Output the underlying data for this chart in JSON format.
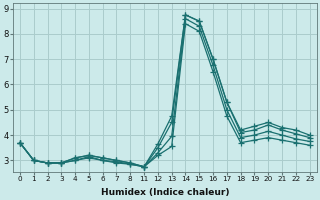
{
  "xlabel": "Humidex (Indice chaleur)",
  "background_color": "#cceaea",
  "grid_color": "#aacccc",
  "line_color": "#1a7070",
  "ylim": [
    2.55,
    9.2
  ],
  "yticks": [
    3,
    4,
    5,
    6,
    7,
    8,
    9
  ],
  "tick_positions": [
    0,
    1,
    2,
    3,
    4,
    5,
    6,
    7,
    8,
    9,
    10,
    11,
    12,
    13,
    14,
    15,
    16,
    17,
    18,
    19,
    20,
    21,
    22
  ],
  "tick_labels": [
    "0",
    "1",
    "2",
    "3",
    "4",
    "5",
    "6",
    "7",
    "8",
    "11",
    "12",
    "13",
    "14",
    "15",
    "16",
    "17",
    "18",
    "19",
    "20",
    "21",
    "22",
    "23",
    ""
  ],
  "lines": [
    {
      "xi": [
        0,
        1,
        2,
        3,
        4,
        5,
        6,
        7,
        8,
        9,
        10,
        11,
        12,
        13,
        14,
        15,
        16,
        17,
        18,
        19,
        20,
        21
      ],
      "y": [
        3.7,
        3.0,
        2.9,
        2.9,
        3.1,
        3.2,
        3.1,
        3.0,
        2.9,
        2.75,
        3.65,
        4.75,
        8.75,
        8.5,
        7.0,
        5.3,
        4.2,
        4.35,
        4.5,
        4.3,
        4.2,
        4.0
      ]
    },
    {
      "xi": [
        0,
        1,
        2,
        3,
        4,
        5,
        6,
        7,
        8,
        9,
        10,
        11,
        12,
        13,
        14,
        15,
        16,
        17,
        18,
        19,
        20,
        21
      ],
      "y": [
        3.7,
        3.0,
        2.9,
        2.9,
        3.1,
        3.2,
        3.1,
        3.0,
        2.9,
        2.75,
        3.5,
        4.5,
        8.75,
        8.5,
        7.0,
        5.3,
        4.1,
        4.2,
        4.4,
        4.2,
        4.05,
        3.9
      ]
    },
    {
      "xi": [
        0,
        1,
        2,
        3,
        4,
        5,
        6,
        7,
        8,
        9,
        10,
        11,
        12,
        13,
        14,
        15,
        16,
        17,
        18,
        19,
        20,
        21
      ],
      "y": [
        3.7,
        3.0,
        2.9,
        2.9,
        3.0,
        3.15,
        3.0,
        2.95,
        2.85,
        2.75,
        3.3,
        3.95,
        8.6,
        8.3,
        6.75,
        5.0,
        3.9,
        4.0,
        4.15,
        4.0,
        3.85,
        3.75
      ]
    },
    {
      "xi": [
        0,
        1,
        2,
        3,
        4,
        5,
        6,
        7,
        8,
        9,
        10,
        11,
        12,
        13,
        14,
        15,
        16,
        17,
        18,
        19,
        20,
        21
      ],
      "y": [
        3.7,
        3.0,
        2.9,
        2.9,
        3.0,
        3.1,
        3.0,
        2.9,
        2.85,
        2.75,
        3.2,
        3.55,
        8.4,
        8.1,
        6.5,
        4.75,
        3.7,
        3.8,
        3.9,
        3.8,
        3.7,
        3.6
      ]
    }
  ]
}
